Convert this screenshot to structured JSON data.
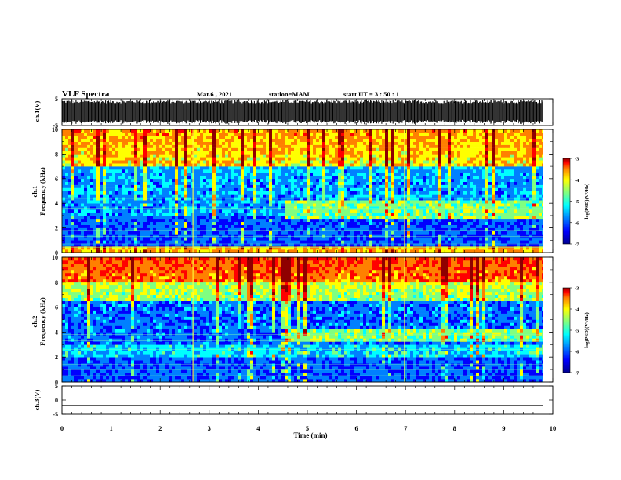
{
  "header": {
    "title": "VLF Spectra",
    "date": "Mar.6  , 2021",
    "station": "station=MAM",
    "start": "start  UT =   3 : 50 : 1"
  },
  "colors": {
    "spectrogram_scale": [
      "#00008f",
      "#0000ff",
      "#0080ff",
      "#00ffff",
      "#80ff80",
      "#ffff00",
      "#ff8000",
      "#ff0000",
      "#8f0000"
    ],
    "trace": "#000000"
  },
  "chart_data": [
    {
      "type": "line",
      "name": "ch1-waveform",
      "ylabel": "ch.1(V)",
      "ylim": [
        -5,
        5
      ],
      "yticks": [
        "5",
        "-5"
      ],
      "xlim": [
        0,
        10
      ],
      "description_of_values": "dense oscillating waveform filling about -4.5 to 4.5 V across 0-9.8 min",
      "amplitude": 4.5,
      "x_end": 9.8
    },
    {
      "type": "heatmap",
      "name": "ch1-spectrogram",
      "ylabel": "ch.1\nFrequency (kHz)",
      "ylabel_lines": [
        "ch.1",
        "Frequency (kHz)"
      ],
      "ylim": [
        0,
        10
      ],
      "yticks": [
        "0",
        "2",
        "4",
        "6",
        "8",
        "10"
      ],
      "xlim": [
        0,
        10
      ],
      "x_end": 9.8,
      "colorbar": {
        "label": "log(PSD)(V²/Hz)",
        "ticks": [
          "-3",
          "-4",
          "-5",
          "-6",
          "-7"
        ],
        "range": [
          -7,
          -3
        ]
      },
      "bands": [
        {
          "freq": [
            0,
            0.5
          ],
          "level": -4.2
        },
        {
          "freq": [
            0.5,
            3
          ],
          "level": -6.2
        },
        {
          "freq": [
            3,
            4
          ],
          "level": -5.9
        },
        {
          "freq": [
            4,
            7
          ],
          "level": -5.9
        },
        {
          "freq": [
            7,
            10
          ],
          "level": -4.6
        }
      ],
      "emission": {
        "time": [
          4.5,
          9.8
        ],
        "freq": [
          2.8,
          4.2
        ],
        "level": -5.0
      }
    },
    {
      "type": "heatmap",
      "name": "ch2-spectrogram",
      "ylabel": "ch.2\nFrequency (kHz)",
      "ylabel_lines": [
        "ch.2",
        "Frequency (kHz)"
      ],
      "ylim": [
        0,
        10
      ],
      "yticks": [
        "0",
        "2",
        "4",
        "6",
        "8",
        "10"
      ],
      "xlim": [
        0,
        10
      ],
      "x_end": 9.8,
      "colorbar": {
        "label": "log(PSD)(V²/Hz)",
        "ticks": [
          "-3",
          "-4",
          "-5",
          "-6",
          "-7"
        ],
        "range": [
          -7,
          -3
        ]
      },
      "bands": [
        {
          "freq": [
            0,
            2
          ],
          "level": -6.2
        },
        {
          "freq": [
            2,
            3
          ],
          "level": -5.6
        },
        {
          "freq": [
            3,
            6.5
          ],
          "level": -6.1
        },
        {
          "freq": [
            6.5,
            8
          ],
          "level": -5.0
        },
        {
          "freq": [
            8,
            10
          ],
          "level": -4.2
        }
      ],
      "emission": {
        "time": [
          4.5,
          9.8
        ],
        "freq": [
          3.2,
          4.2
        ],
        "level": -5.0
      }
    },
    {
      "type": "line",
      "name": "ch3-waveform",
      "ylabel": "ch.3(V)",
      "ylim": [
        -5,
        5
      ],
      "yticks": [
        "5",
        "0",
        "-5"
      ],
      "xlim": [
        0,
        10
      ],
      "x_end": 9.8,
      "constant_value": -2
    }
  ],
  "xaxis": {
    "label": "Time (min)",
    "ticks": [
      "0",
      "1",
      "2",
      "3",
      "4",
      "5",
      "6",
      "7",
      "8",
      "9",
      "10"
    ],
    "range": [
      0,
      10
    ]
  }
}
